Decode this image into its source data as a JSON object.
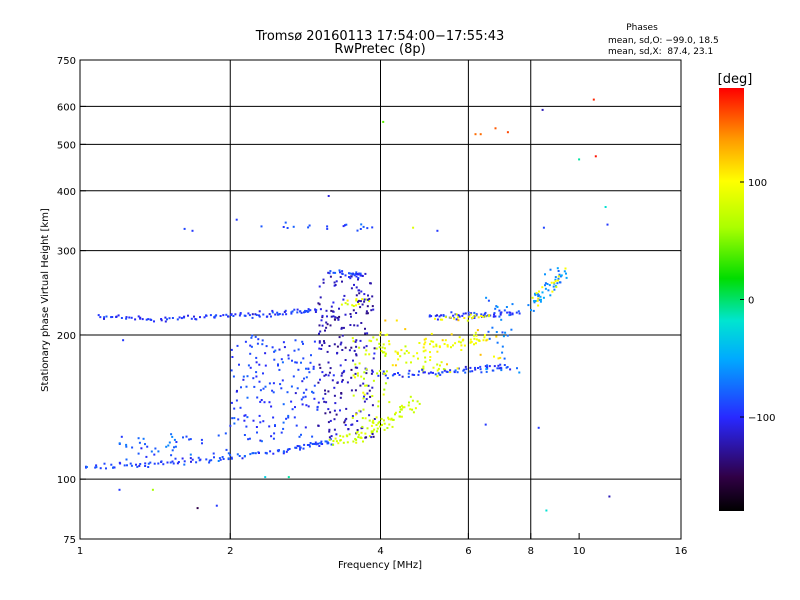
{
  "header": {
    "title_line1": "Tromsø 20160113 17:54:00−17:55:43",
    "title_line2": "RwPretec (8p)"
  },
  "phase_info": {
    "heading": "Phases",
    "line_o": "mean, sd,O: −99.0, 18.5",
    "line_x": "mean, sd,X:  87.4, 23.1"
  },
  "colorbar": {
    "unit_label": "[deg]",
    "ticks": [
      "100",
      "0",
      "−100"
    ],
    "tick_values": [
      100,
      0,
      -100
    ],
    "range": [
      -180,
      180
    ]
  },
  "chart_data": {
    "type": "scatter",
    "title": "Tromsø 20160113 17:54:00−17:55:43",
    "subtitle": "RwPretec (8p)",
    "xlabel": "Frequency [MHz]",
    "ylabel": "Stationary phase Virtual Height [km]",
    "x_scale": "log",
    "y_scale": "log",
    "xlim": [
      1,
      16
    ],
    "ylim": [
      75,
      750
    ],
    "x_ticks": [
      1,
      2,
      4,
      6,
      8,
      10,
      16
    ],
    "x_tick_labels": [
      "1",
      "2",
      "4",
      "6",
      "8",
      "10",
      "16"
    ],
    "x_grid": [
      2,
      4,
      6,
      8
    ],
    "y_ticks": [
      75,
      100,
      200,
      300,
      400,
      500,
      600,
      750
    ],
    "y_tick_labels": [
      "75",
      "100",
      "200",
      "300",
      "400",
      "500",
      "600",
      "750"
    ],
    "y_grid": [
      100,
      200,
      300,
      400,
      500,
      600
    ],
    "grid": true,
    "series": [
      {
        "traces": [
          {
            "x": [
              1.02,
              1.3,
              1.6,
              2.0,
              2.5,
              2.9,
              3.2
            ],
            "y": [
              106,
              107,
              109,
              111,
              114,
              118,
              120
            ],
            "phase": -90,
            "n": 120,
            "jx": 0.01,
            "jy": 0.01
          },
          {
            "x": [
              3.2,
              3.5,
              3.8,
              4.1,
              4.4,
              4.7
            ],
            "y": [
              120,
              122,
              126,
              131,
              138,
              145
            ],
            "phase": 80,
            "n": 80,
            "jx": 0.02,
            "jy": 0.02
          },
          {
            "x": [
              1.1,
              1.4,
              1.8,
              2.2,
              2.6,
              3.0
            ],
            "y": [
              218,
              216,
              218,
              220,
              223,
              226
            ],
            "phase": -95,
            "n": 110,
            "jx": 0.01,
            "jy": 0.008
          },
          {
            "x": [
              3.2,
              3.5,
              3.7
            ],
            "y": [
              270,
              268,
              266
            ],
            "phase": -90,
            "n": 30,
            "jx": 0.02,
            "jy": 0.01
          },
          {
            "x": [
              3.4,
              3.6,
              3.7
            ],
            "y": [
              232,
              234,
              236
            ],
            "phase": 90,
            "n": 14,
            "jx": 0.02,
            "jy": 0.01
          },
          {
            "x": [
              3.9,
              4.2,
              4.6,
              5.0,
              5.3
            ],
            "y": [
              197,
              188,
              180,
              172,
              168
            ],
            "phase": 85,
            "n": 45,
            "jx": 0.03,
            "jy": 0.03
          },
          {
            "x": [
              4.0,
              4.8,
              5.6,
              6.4,
              7.2
            ],
            "y": [
              166,
              166,
              168,
              170,
              172
            ],
            "phase": -95,
            "n": 70,
            "jx": 0.01,
            "jy": 0.01
          },
          {
            "x": [
              4.8,
              5.4,
              6.0,
              6.5
            ],
            "y": [
              190,
              192,
              194,
              196
            ],
            "phase": 95,
            "n": 45,
            "jx": 0.02,
            "jy": 0.02
          },
          {
            "x": [
              5.0,
              5.6,
              6.2,
              6.8,
              7.6
            ],
            "y": [
              218,
              220,
              220,
              221,
              222
            ],
            "phase": -95,
            "n": 60,
            "jx": 0.01,
            "jy": 0.01
          },
          {
            "x": [
              5.2,
              6.0,
              6.6
            ],
            "y": [
              217,
              219,
              220
            ],
            "phase": 95,
            "n": 20,
            "jx": 0.01,
            "jy": 0.01
          },
          {
            "x": [
              8.0,
              8.4,
              8.9,
              9.4
            ],
            "y": [
              230,
              245,
              258,
              268
            ],
            "phase": -60,
            "n": 45,
            "jx": 0.02,
            "jy": 0.03
          },
          {
            "x": [
              8.0,
              8.6,
              9.2
            ],
            "y": [
              232,
              250,
              268
            ],
            "phase": 100,
            "n": 14,
            "jx": 0.02,
            "jy": 0.03
          },
          {
            "x": [
              2.4,
              2.8,
              3.2,
              3.6,
              3.8
            ],
            "y": [
              338,
              340,
              338,
              336,
              334
            ],
            "phase": -90,
            "n": 18,
            "jx": 0.03,
            "jy": 0.01
          }
        ]
      },
      {
        "clouds": [
          {
            "x": [
              2.0,
              3.0
            ],
            "y": [
              120,
              200
            ],
            "phase": -90,
            "n": 160
          },
          {
            "x": [
              3.0,
              3.9
            ],
            "y": [
              122,
              270
            ],
            "phase": -120,
            "n": 230
          },
          {
            "x": [
              3.5,
              4.2
            ],
            "y": [
              125,
              200
            ],
            "phase": 80,
            "n": 55
          },
          {
            "x": [
              1.2,
              2.0
            ],
            "y": [
              108,
              125
            ],
            "phase": -80,
            "n": 45
          },
          {
            "x": [
              6.5,
              7.6
            ],
            "y": [
              165,
              240
            ],
            "phase": -70,
            "n": 30
          },
          {
            "x": [
              4.0,
              7.0
            ],
            "y": [
              170,
              215
            ],
            "phase": 110,
            "n": 30
          }
        ]
      },
      {
        "points": [
          [
            1.09,
            220,
            -95
          ],
          [
            1.22,
            195,
            -95
          ],
          [
            1.2,
            95,
            -95
          ],
          [
            1.4,
            95,
            60
          ],
          [
            1.72,
            87,
            -150
          ],
          [
            1.88,
            88,
            -95
          ],
          [
            1.62,
            333,
            -90
          ],
          [
            1.68,
            330,
            -95
          ],
          [
            2.06,
            348,
            -95
          ],
          [
            2.35,
            101,
            -30
          ],
          [
            2.62,
            101,
            -10
          ],
          [
            3.15,
            390,
            -110
          ],
          [
            4.05,
            557,
            40
          ],
          [
            4.65,
            335,
            85
          ],
          [
            5.2,
            330,
            -95
          ],
          [
            6.2,
            525,
            150
          ],
          [
            6.35,
            525,
            150
          ],
          [
            6.8,
            540,
            155
          ],
          [
            7.2,
            530,
            160
          ],
          [
            8.45,
            590,
            -120
          ],
          [
            8.6,
            86,
            -20
          ],
          [
            10.0,
            465,
            -10
          ],
          [
            10.7,
            620,
            170
          ],
          [
            10.8,
            472,
            175
          ],
          [
            11.3,
            370,
            -20
          ],
          [
            11.4,
            340,
            -95
          ],
          [
            11.5,
            92,
            -120
          ],
          [
            8.3,
            128,
            -95
          ],
          [
            6.5,
            130,
            -95
          ],
          [
            8.5,
            335,
            -90
          ],
          [
            9.0,
            252,
            80
          ]
        ]
      }
    ]
  }
}
